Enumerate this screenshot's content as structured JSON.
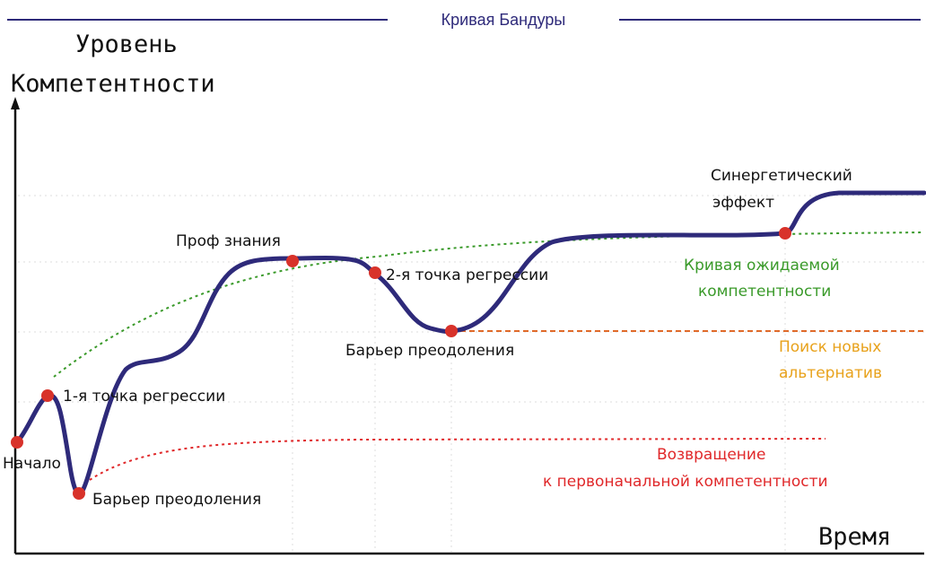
{
  "title": "Кривая Бандуры",
  "y_axis_title": [
    "Уровень",
    "Компетентности"
  ],
  "x_axis_title": "Время",
  "points": {
    "start": "Начало",
    "regression_1": "1-я точка регрессии",
    "barrier_1": "Барьер преодоления",
    "prof_knowledge": "Проф знания",
    "regression_2": "2-я точка регрессии",
    "barrier_2": "Барьер преодоления",
    "synergy": [
      "Синергетический",
      "эффект"
    ]
  },
  "legend_notes": {
    "expected": [
      "Кривая ожидаемой",
      "компетентности"
    ],
    "alternatives": [
      "Поиск новых",
      "альтернатив"
    ],
    "return": [
      "Возвращение",
      "к первоначальной компетентности"
    ]
  },
  "colors": {
    "curve": "#2e2a7a",
    "point": "#d8322a",
    "title": "#2e2a7a",
    "expected": "#3a9a2a",
    "alternatives": "#e8a21c",
    "alternatives_line": "#e06a2a",
    "return": "#e0282a"
  }
}
